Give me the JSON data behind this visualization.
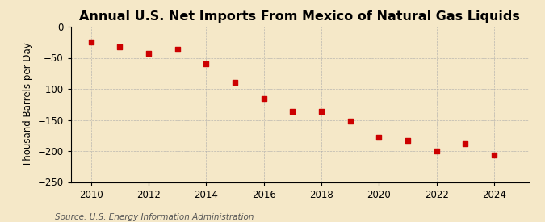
{
  "title": "Annual U.S. Net Imports From Mexico of Natural Gas Liquids",
  "ylabel": "Thousand Barrels per Day",
  "source": "Source: U.S. Energy Information Administration",
  "background_color": "#f5e8c8",
  "years": [
    2010,
    2011,
    2012,
    2013,
    2014,
    2015,
    2016,
    2017,
    2018,
    2019,
    2020,
    2021,
    2022,
    2023,
    2024
  ],
  "values": [
    -25,
    -32,
    -43,
    -37,
    -60,
    -90,
    -115,
    -137,
    -137,
    -152,
    -178,
    -183,
    -200,
    -188,
    -207
  ],
  "marker_color": "#cc0000",
  "ylim": [
    -250,
    0
  ],
  "yticks": [
    0,
    -50,
    -100,
    -150,
    -200,
    -250
  ],
  "xlim": [
    2009.3,
    2025.2
  ],
  "xticks": [
    2010,
    2012,
    2014,
    2016,
    2018,
    2020,
    2022,
    2024
  ],
  "title_fontsize": 11.5,
  "label_fontsize": 8.5,
  "source_fontsize": 7.5
}
